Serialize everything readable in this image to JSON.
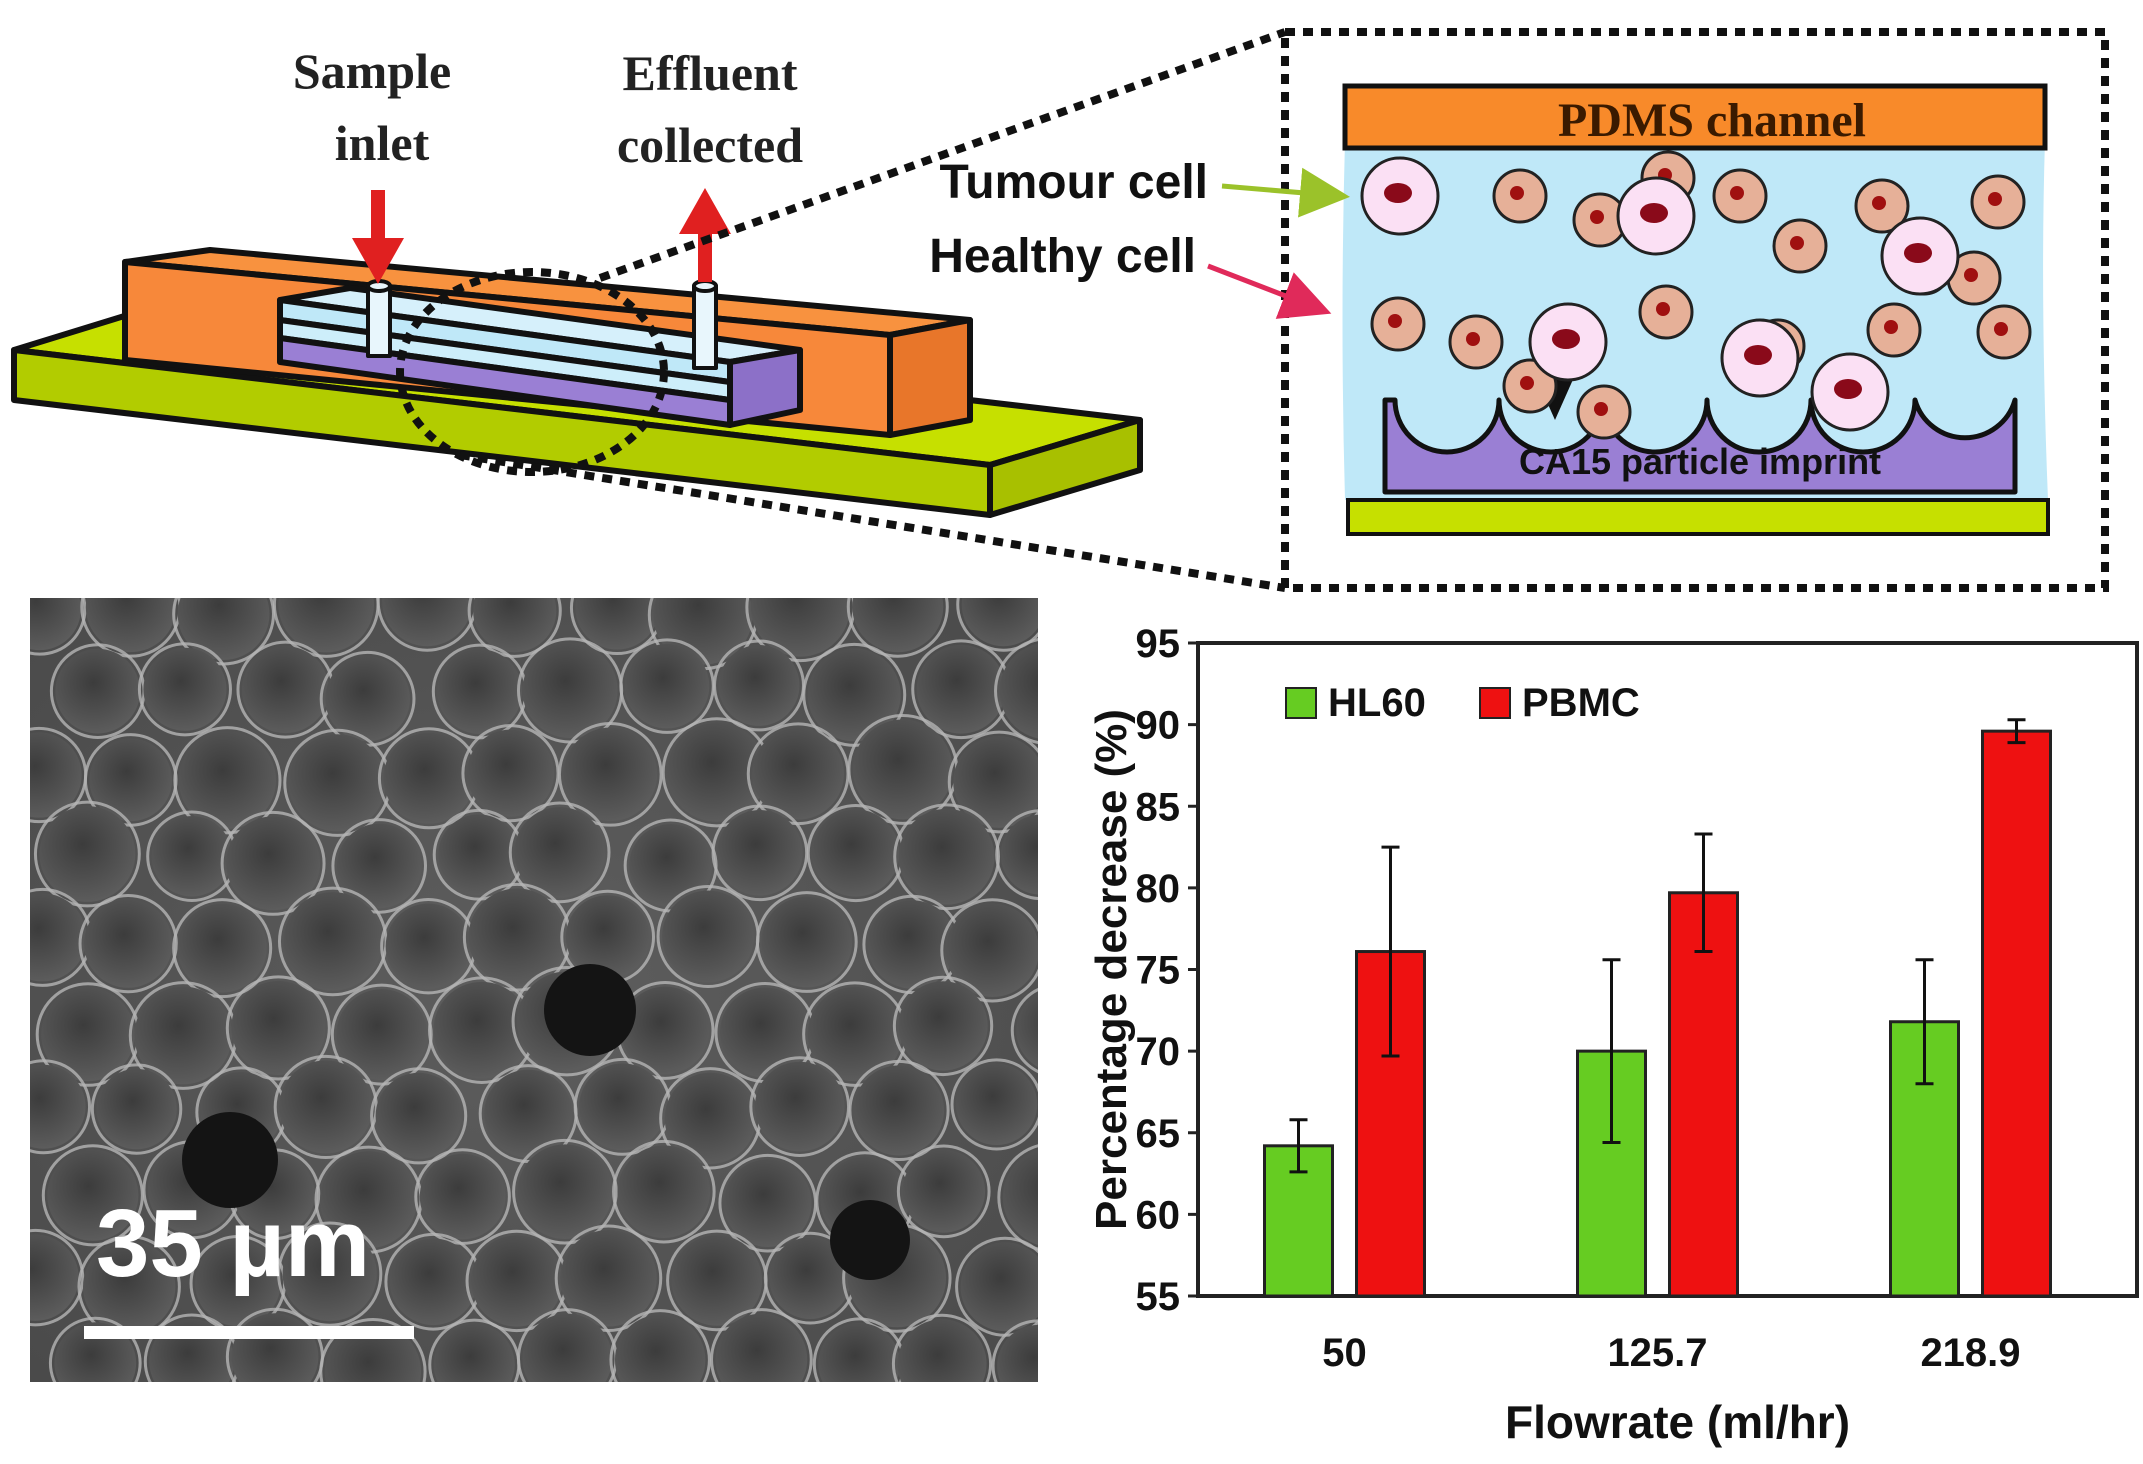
{
  "device": {
    "label_sample_inlet_line1": "Sample",
    "label_sample_inlet_line2": "inlet",
    "label_effluent_line1": "Effluent",
    "label_effluent_line2": "collected"
  },
  "inset": {
    "pdms_label": "PDMS channel",
    "imprint_label": "CA15 particle imprint",
    "tumour_label": "Tumour cell",
    "healthy_label": "Healthy cell"
  },
  "micrograph": {
    "scale_label": "35 µm"
  },
  "colors": {
    "orange": "#f8923f",
    "green": "#c6e000",
    "blue": "#bfe8f8",
    "purple": "#9a7fd4",
    "hl60": "#66cc22",
    "pbmc": "#ee1111"
  },
  "chart_data": {
    "type": "bar",
    "categories": [
      "50",
      "125.7",
      "218.9"
    ],
    "series": [
      {
        "name": "HL60",
        "values": [
          64.2,
          70.0,
          71.8
        ],
        "errors": [
          1.6,
          5.6,
          3.8
        ]
      },
      {
        "name": "PBMC",
        "values": [
          76.1,
          79.7,
          89.6
        ],
        "errors": [
          6.4,
          3.6,
          0.7
        ]
      }
    ],
    "xlabel": "Flowrate (ml/hr)",
    "ylabel": "Percentage decrease (%)",
    "ylim": [
      55,
      95
    ],
    "yticks": [
      55,
      60,
      65,
      70,
      75,
      80,
      85,
      90,
      95
    ],
    "legend": "top-left"
  }
}
